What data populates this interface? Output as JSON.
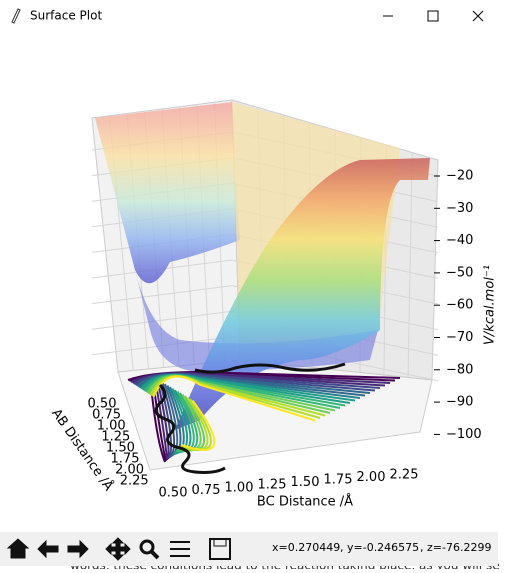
{
  "window": {
    "title": "Surface Plot"
  },
  "plot": {
    "z_axis": {
      "label": "V/kcal.mol⁻¹",
      "ticks": [
        "−20",
        "−30",
        "−40",
        "−50",
        "−60",
        "−70",
        "−80",
        "−90",
        "−100"
      ]
    },
    "ab_axis": {
      "label": "AB Distance /Å",
      "ticks": [
        "0.50",
        "0.75",
        "1.00",
        "1.25",
        "1.50",
        "1.75",
        "2.00",
        "2.25"
      ]
    },
    "bc_axis": {
      "label": "BC Distance /Å",
      "ticks": [
        "0.50",
        "0.75",
        "1.00",
        "1.25",
        "1.50",
        "1.75",
        "2.00",
        "2.25"
      ]
    }
  },
  "status": {
    "x": "x=0.270449",
    "y": ", y=-0.246575",
    "z": ", z=-76.2299"
  },
  "background_text": "words, these conditions lead to the reaction taking place, as you will se"
}
